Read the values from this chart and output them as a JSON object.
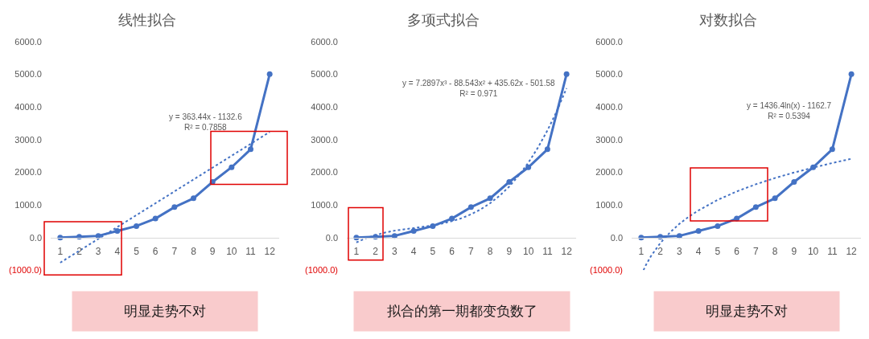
{
  "chart_data": [
    {
      "type": "line",
      "title": "线性拟合",
      "x": [
        1,
        2,
        3,
        4,
        5,
        6,
        7,
        8,
        9,
        10,
        11,
        12
      ],
      "xlim": [
        0.5,
        12.5
      ],
      "xticks": [
        1,
        2,
        3,
        4,
        5,
        6,
        7,
        8,
        9,
        10,
        11,
        12
      ],
      "ylim": [
        -1000,
        6000
      ],
      "yticks": [
        {
          "value": -1000,
          "label": "(1000.0)"
        },
        {
          "value": 0,
          "label": "0.0"
        },
        {
          "value": 1000,
          "label": "1000.0"
        },
        {
          "value": 2000,
          "label": "2000.0"
        },
        {
          "value": 3000,
          "label": "3000.0"
        },
        {
          "value": 4000,
          "label": "4000.0"
        },
        {
          "value": 5000,
          "label": "5000.0"
        },
        {
          "value": 6000,
          "label": "6000.0"
        }
      ],
      "marker": "circle",
      "line_style": "solid",
      "series": [
        {
          "color": "#4472c4",
          "values": [
            0,
            20,
            50,
            200,
            350,
            580,
            930,
            1200,
            1700,
            2150,
            2700,
            5000
          ]
        },
        {
          "type": "line",
          "x": [
            1,
            12
          ],
          "values": [
            -770,
            3230
          ],
          "color": "#4472c4",
          "line_style": "dotted",
          "marker": "none"
        }
      ],
      "annotations": [
        "y = 363.44x - 1132.6\nR² = 0.7858",
        "明显走势不对"
      ]
    },
    {
      "type": "line",
      "title": "多项式拟合",
      "x": [
        1,
        2,
        3,
        4,
        5,
        6,
        7,
        8,
        9,
        10,
        11,
        12
      ],
      "xlim": [
        0.5,
        12.5
      ],
      "xticks": [
        1,
        2,
        3,
        4,
        5,
        6,
        7,
        8,
        9,
        10,
        11,
        12
      ],
      "ylim": [
        -1000,
        6000
      ],
      "yticks": [
        {
          "value": -1000,
          "label": "(1000.0)"
        },
        {
          "value": 0,
          "label": "0.0"
        },
        {
          "value": 1000,
          "label": "1000.0"
        },
        {
          "value": 2000,
          "label": "2000.0"
        },
        {
          "value": 3000,
          "label": "3000.0"
        },
        {
          "value": 4000,
          "label": "4000.0"
        },
        {
          "value": 5000,
          "label": "5000.0"
        },
        {
          "value": 6000,
          "label": "6000.0"
        }
      ],
      "marker": "circle",
      "line_style": "solid",
      "series": [
        {
          "color": "#4472c4",
          "values": [
            0,
            20,
            50,
            200,
            350,
            580,
            930,
            1200,
            1700,
            2150,
            2700,
            5000
          ]
        },
        {
          "type": "line",
          "x": [
            1,
            1.5,
            2,
            2.5,
            3,
            3.5,
            4,
            4.5,
            5,
            5.5,
            6,
            6.5,
            7,
            7.5,
            8,
            8.5,
            9,
            9.5,
            10,
            10.5,
            11,
            11.5,
            12
          ],
          "values": [
            -150,
            -20,
            70,
            150,
            210,
            250,
            290,
            330,
            370,
            430,
            500,
            590,
            710,
            860,
            1050,
            1280,
            1560,
            1900,
            2290,
            2750,
            3280,
            3880,
            4570
          ],
          "color": "#4472c4",
          "line_style": "dotted",
          "marker": "none"
        }
      ],
      "annotations": [
        "y = 7.2897x³ - 88.543x² + 435.62x - 501.58\nR² = 0.971",
        "拟合的第一期都变负数了"
      ]
    },
    {
      "type": "line",
      "title": "对数拟合",
      "x": [
        1,
        2,
        3,
        4,
        5,
        6,
        7,
        8,
        9,
        10,
        11,
        12
      ],
      "xlim": [
        0.5,
        12.5
      ],
      "xticks": [
        1,
        2,
        3,
        4,
        5,
        6,
        7,
        8,
        9,
        10,
        11,
        12
      ],
      "ylim": [
        -1000,
        6000
      ],
      "yticks": [
        {
          "value": -1000,
          "label": "(1000.0)"
        },
        {
          "value": 0,
          "label": "0.0"
        },
        {
          "value": 1000,
          "label": "1000.0"
        },
        {
          "value": 2000,
          "label": "2000.0"
        },
        {
          "value": 3000,
          "label": "3000.0"
        },
        {
          "value": 4000,
          "label": "4000.0"
        },
        {
          "value": 5000,
          "label": "5000.0"
        },
        {
          "value": 6000,
          "label": "6000.0"
        }
      ],
      "marker": "circle",
      "line_style": "solid",
      "series": [
        {
          "color": "#4472c4",
          "values": [
            0,
            20,
            50,
            200,
            350,
            580,
            930,
            1200,
            1700,
            2150,
            2700,
            5000
          ]
        },
        {
          "type": "line",
          "x": [
            1.12,
            1.25,
            1.5,
            2,
            2.5,
            3,
            3.5,
            4,
            5,
            6,
            7,
            8,
            9,
            10,
            11,
            12
          ],
          "values": [
            -1000,
            -840,
            -580,
            -170,
            150,
            420,
            640,
            830,
            1150,
            1410,
            1630,
            1820,
            1990,
            2140,
            2280,
            2410
          ],
          "color": "#4472c4",
          "line_style": "dotted",
          "marker": "none"
        }
      ],
      "annotations": [
        "y = 1436.4ln(x) - 1162.7\nR² = 0.5394",
        "明显走势不对"
      ]
    }
  ]
}
